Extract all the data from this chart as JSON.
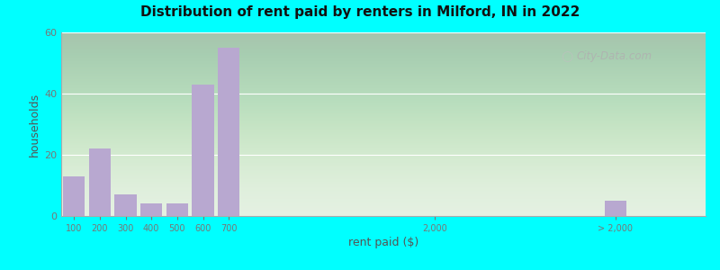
{
  "title": "Distribution of rent paid by renters in Milford, IN in 2022",
  "xlabel": "rent paid ($)",
  "ylabel": "households",
  "bar_color": "#b8a8d0",
  "background_outer": "#00ffff",
  "categories": [
    "100",
    "200",
    "300",
    "400",
    "500",
    "600",
    "700",
    "2,000",
    "> 2,000"
  ],
  "values": [
    13,
    22,
    7,
    4,
    4,
    43,
    55,
    0,
    5
  ],
  "ylim": [
    0,
    60
  ],
  "yticks": [
    0,
    20,
    40,
    60
  ],
  "xlim": [
    -0.5,
    24.5
  ],
  "x_bar_positions": [
    0,
    1,
    2,
    3,
    4,
    5,
    6,
    14,
    21
  ],
  "x_tick_positions": [
    0,
    1,
    2,
    3,
    4,
    5,
    6,
    14,
    21
  ],
  "bar_width": 0.85,
  "watermark": "City-Data.com",
  "grid_color": "#ffffff",
  "spine_color": "#aaaaaa",
  "tick_color": "#777777",
  "label_color": "#555555",
  "title_color": "#111111"
}
